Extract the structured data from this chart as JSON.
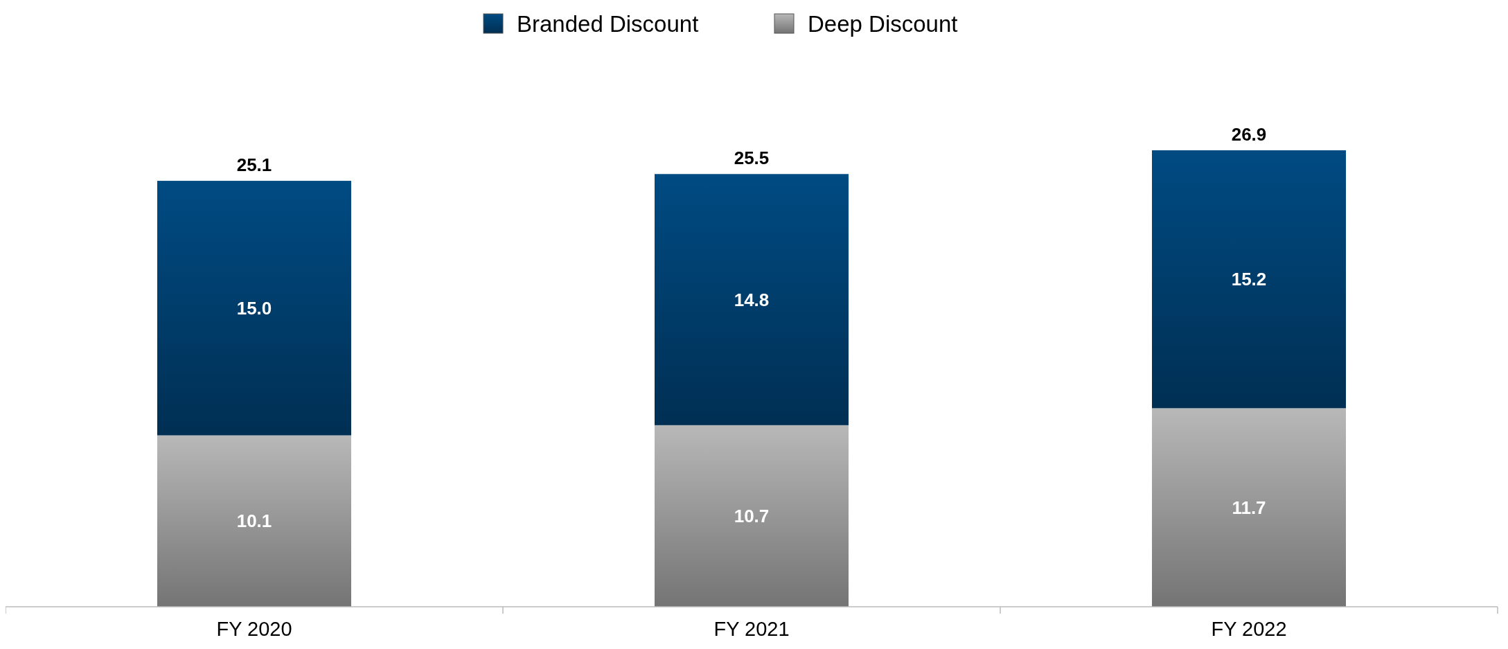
{
  "chart_data": {
    "type": "bar",
    "stacked": true,
    "categories": [
      "FY 2020",
      "FY 2021",
      "FY 2022"
    ],
    "series": [
      {
        "name": "Deep Discount",
        "color": "#9a9a9a",
        "values": [
          10.1,
          10.7,
          11.7
        ],
        "value_labels": [
          "10.1",
          "10.7",
          "11.7"
        ]
      },
      {
        "name": "Branded Discount",
        "color": "#003f6e",
        "values": [
          15.0,
          14.8,
          15.2
        ],
        "value_labels": [
          "15.0",
          "14.8",
          "15.2"
        ]
      }
    ],
    "totals": [
      "25.1",
      "25.5",
      "26.9"
    ],
    "legend": "top"
  }
}
